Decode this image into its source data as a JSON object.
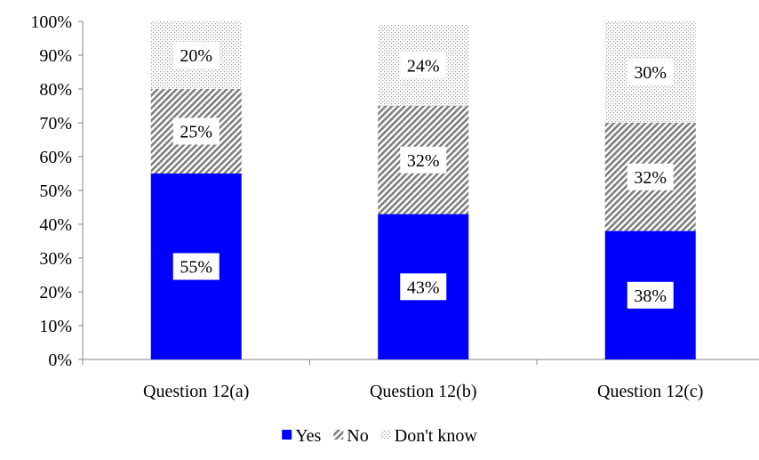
{
  "chart_data": {
    "type": "bar",
    "stacked": true,
    "categories": [
      "Question 12(a)",
      "Question 12(b)",
      "Question 12(c)"
    ],
    "series": [
      {
        "name": "Yes",
        "values": [
          55,
          43,
          38
        ],
        "labels": [
          "55%",
          "43%",
          "38%"
        ],
        "color": "#0000FF",
        "fill": "solid"
      },
      {
        "name": "No",
        "values": [
          25,
          32,
          32
        ],
        "labels": [
          "25%",
          "32%",
          "32%"
        ],
        "color": "#7F7F7F",
        "fill": "diagonal-hatch"
      },
      {
        "name": "Don't know",
        "values": [
          20,
          24,
          30
        ],
        "labels": [
          "20%",
          "24%",
          "30%"
        ],
        "color": "#BFBFBF",
        "fill": "dots"
      }
    ],
    "ylim": [
      0,
      100
    ],
    "yticks": [
      "0%",
      "10%",
      "20%",
      "30%",
      "40%",
      "50%",
      "60%",
      "70%",
      "80%",
      "90%",
      "100%"
    ],
    "xlabel": "",
    "ylabel": "",
    "title": "",
    "grid": false,
    "legend": "bottom-center"
  }
}
